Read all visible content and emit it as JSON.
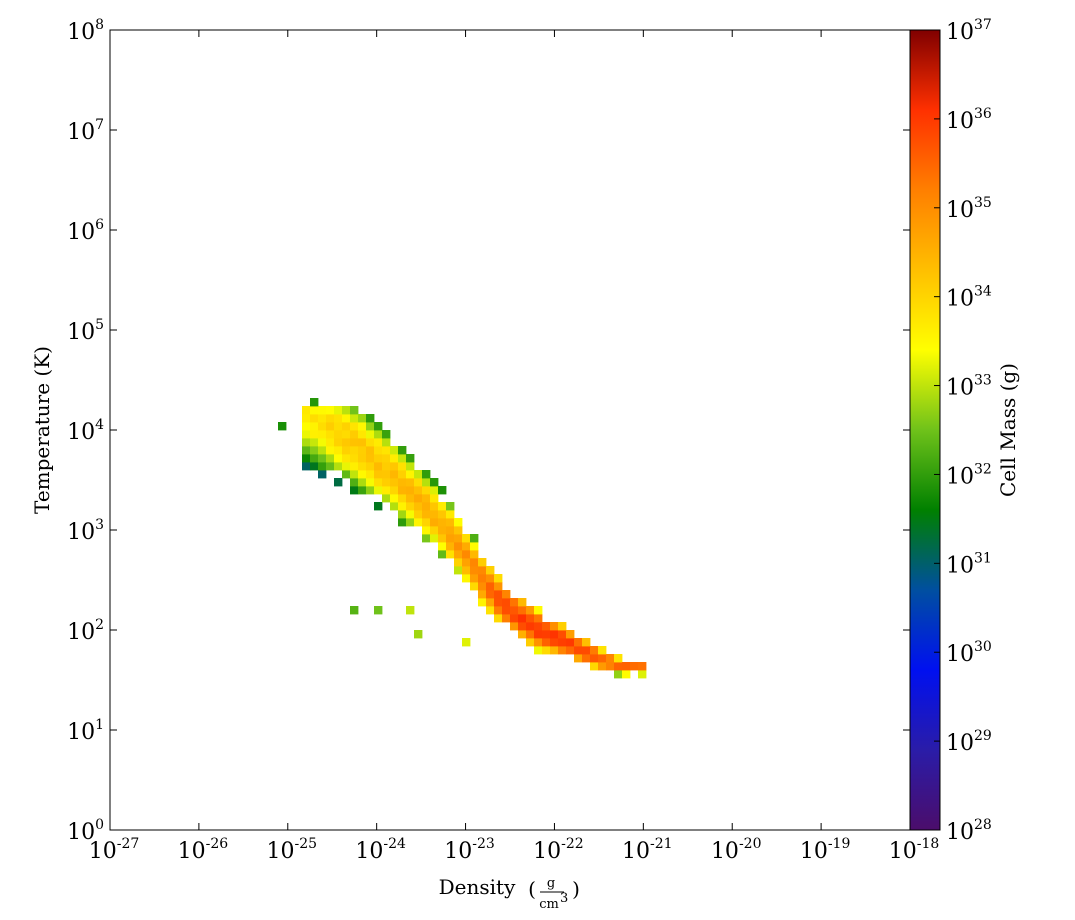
{
  "chart_data": {
    "type": "heatmap",
    "title": "",
    "xlabel": "Density",
    "xlabel_unit": {
      "numerator": "g",
      "denominator_base": "cm",
      "denominator_exp": "3"
    },
    "ylabel": "Temperature  (K)",
    "colorbar_label": "Cell Mass  (g)",
    "x_scale": "log",
    "y_scale": "log",
    "colorbar_scale": "log",
    "xlim": [
      1e-27,
      1e-18
    ],
    "ylim": [
      1,
      100000000.0
    ],
    "clim": [
      1e+28,
      1e+37
    ],
    "x_ticks": [
      {
        "base": "10",
        "exp": "-27"
      },
      {
        "base": "10",
        "exp": "-26"
      },
      {
        "base": "10",
        "exp": "-25"
      },
      {
        "base": "10",
        "exp": "-24"
      },
      {
        "base": "10",
        "exp": "-23"
      },
      {
        "base": "10",
        "exp": "-22"
      },
      {
        "base": "10",
        "exp": "-21"
      },
      {
        "base": "10",
        "exp": "-20"
      },
      {
        "base": "10",
        "exp": "-19"
      },
      {
        "base": "10",
        "exp": "-18"
      }
    ],
    "y_ticks": [
      {
        "base": "10",
        "exp": "0"
      },
      {
        "base": "10",
        "exp": "1"
      },
      {
        "base": "10",
        "exp": "2"
      },
      {
        "base": "10",
        "exp": "3"
      },
      {
        "base": "10",
        "exp": "4"
      },
      {
        "base": "10",
        "exp": "5"
      },
      {
        "base": "10",
        "exp": "6"
      },
      {
        "base": "10",
        "exp": "7"
      },
      {
        "base": "10",
        "exp": "8"
      }
    ],
    "colorbar_ticks": [
      {
        "base": "10",
        "exp": "28"
      },
      {
        "base": "10",
        "exp": "29"
      },
      {
        "base": "10",
        "exp": "30"
      },
      {
        "base": "10",
        "exp": "31"
      },
      {
        "base": "10",
        "exp": "32"
      },
      {
        "base": "10",
        "exp": "33"
      },
      {
        "base": "10",
        "exp": "34"
      },
      {
        "base": "10",
        "exp": "35"
      },
      {
        "base": "10",
        "exp": "36"
      },
      {
        "base": "10",
        "exp": "37"
      }
    ],
    "colormap": [
      "#4b0d6b",
      "#2a1ca8",
      "#0010f0",
      "#004fa0",
      "#008000",
      "#6fc21a",
      "#ffff00",
      "#ffbf00",
      "#ff7f00",
      "#ff3000",
      "#800000"
    ],
    "ridge": [
      {
        "log_density": -24.8,
        "log_temperature": 4.15,
        "log_mass": 33.6
      },
      {
        "log_density": -24.5,
        "log_temperature": 4.0,
        "log_mass": 34.0
      },
      {
        "log_density": -24.2,
        "log_temperature": 3.82,
        "log_mass": 34.2
      },
      {
        "log_density": -23.9,
        "log_temperature": 3.6,
        "log_mass": 34.3
      },
      {
        "log_density": -23.6,
        "log_temperature": 3.35,
        "log_mass": 34.4
      },
      {
        "log_density": -23.3,
        "log_temperature": 3.1,
        "log_mass": 34.6
      },
      {
        "log_density": -23.0,
        "log_temperature": 2.75,
        "log_mass": 34.9
      },
      {
        "log_density": -22.8,
        "log_temperature": 2.48,
        "log_mass": 35.3
      },
      {
        "log_density": -22.6,
        "log_temperature": 2.28,
        "log_mass": 35.7
      },
      {
        "log_density": -22.4,
        "log_temperature": 2.13,
        "log_mass": 35.9
      },
      {
        "log_density": -22.2,
        "log_temperature": 2.01,
        "log_mass": 36.1
      },
      {
        "log_density": -22.0,
        "log_temperature": 1.93,
        "log_mass": 36.1
      },
      {
        "log_density": -21.8,
        "log_temperature": 1.85,
        "log_mass": 36.0
      },
      {
        "log_density": -21.6,
        "log_temperature": 1.76,
        "log_mass": 35.8
      },
      {
        "log_density": -21.4,
        "log_temperature": 1.68,
        "log_mass": 35.6
      },
      {
        "log_density": -21.2,
        "log_temperature": 1.63,
        "log_mass": 35.5
      },
      {
        "log_density": -21.0,
        "log_temperature": 1.63,
        "log_mass": 35.5
      }
    ],
    "outliers": [
      {
        "log_density": -24.25,
        "log_temperature": 2.18,
        "log_mass": 32.3
      },
      {
        "log_density": -23.95,
        "log_temperature": 2.18,
        "log_mass": 32.5
      },
      {
        "log_density": -23.6,
        "log_temperature": 2.18,
        "log_mass": 33.0
      },
      {
        "log_density": -23.55,
        "log_temperature": 1.93,
        "log_mass": 32.8
      },
      {
        "log_density": -23.0,
        "log_temperature": 1.86,
        "log_mass": 33.2
      },
      {
        "log_density": -25.1,
        "log_temperature": 4.0,
        "log_mass": 31.8
      },
      {
        "log_density": -24.75,
        "log_temperature": 4.25,
        "log_mass": 31.9
      }
    ]
  }
}
